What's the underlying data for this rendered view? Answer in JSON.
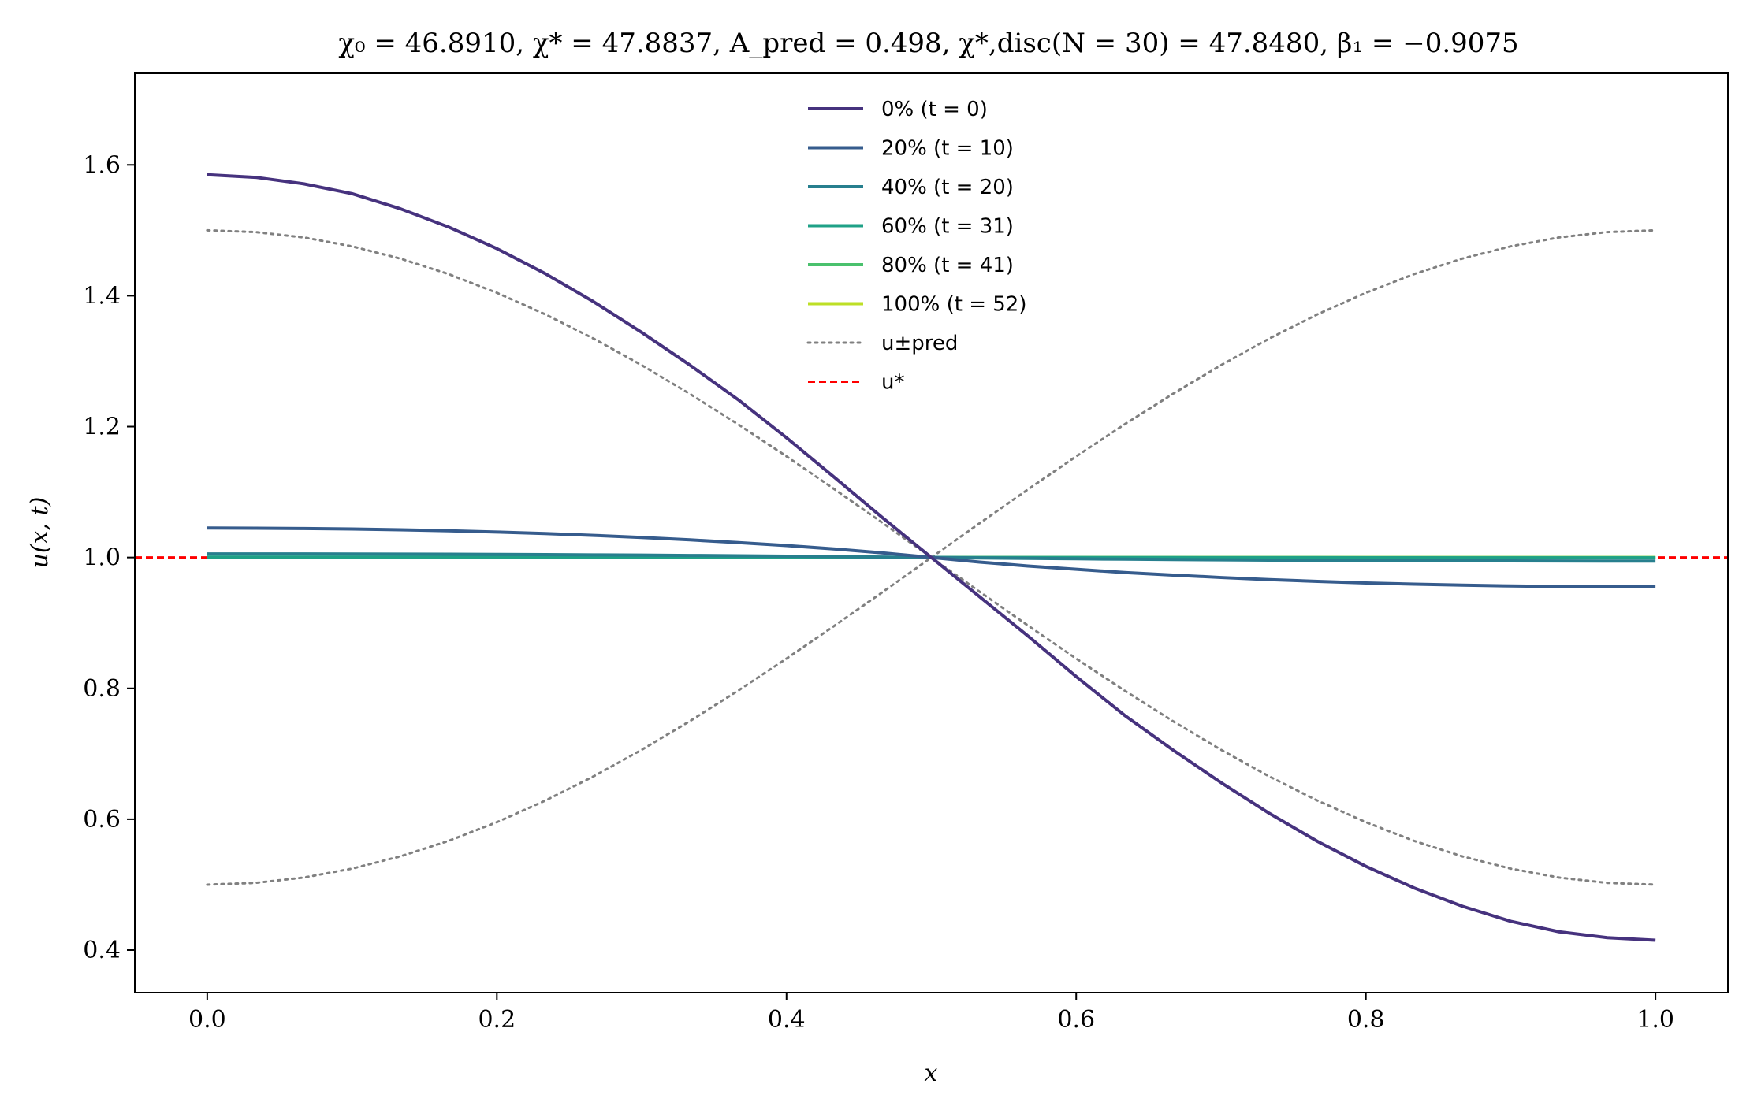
{
  "chart_data": {
    "type": "line",
    "title": "χ₀ = 46.8910,  χ* = 47.8837,  A_pred = 0.498,  χ*,disc(N = 30) = 47.8480,  β₁ = −0.9075",
    "xlabel": "x",
    "ylabel": "u(x, t)",
    "xlim": [
      -0.05,
      1.05
    ],
    "ylim": [
      0.335,
      1.74
    ],
    "xticks": [
      0.0,
      0.2,
      0.4,
      0.6,
      0.8,
      1.0
    ],
    "xtick_labels": [
      "0.0",
      "0.2",
      "0.4",
      "0.6",
      "0.8",
      "1.0"
    ],
    "yticks": [
      0.4,
      0.6,
      0.8,
      1.0,
      1.2,
      1.4,
      1.6
    ],
    "ytick_labels": [
      "0.4",
      "0.6",
      "0.8",
      "1.0",
      "1.2",
      "1.4",
      "1.6"
    ],
    "grid": false,
    "legend_position": "top-center",
    "x": [
      0.0,
      0.0333,
      0.0667,
      0.1,
      0.1333,
      0.1667,
      0.2,
      0.2333,
      0.2667,
      0.3,
      0.3333,
      0.3667,
      0.4,
      0.4333,
      0.4667,
      0.5,
      0.5333,
      0.5667,
      0.6,
      0.6333,
      0.6667,
      0.7,
      0.7333,
      0.7667,
      0.8,
      0.8333,
      0.8667,
      0.9,
      0.9333,
      0.9667,
      1.0
    ],
    "series": [
      {
        "name": "0% (t = 0)",
        "color": "#46327e",
        "style": "solid",
        "values": [
          1.585,
          1.581,
          1.571,
          1.556,
          1.533,
          1.505,
          1.472,
          1.434,
          1.391,
          1.344,
          1.294,
          1.241,
          1.183,
          1.122,
          1.06,
          1.0,
          0.94,
          0.88,
          0.818,
          0.759,
          0.706,
          0.656,
          0.609,
          0.566,
          0.528,
          0.495,
          0.467,
          0.444,
          0.428,
          0.419,
          0.415
        ]
      },
      {
        "name": "20% (t = 10)",
        "color": "#365c8d",
        "style": "solid",
        "values": [
          1.045,
          1.0448,
          1.0443,
          1.0435,
          1.0423,
          1.0408,
          1.0389,
          1.0366,
          1.0338,
          1.0306,
          1.0269,
          1.0228,
          1.0182,
          1.013,
          1.007,
          1.0,
          0.993,
          0.987,
          0.982,
          0.977,
          0.9731,
          0.9694,
          0.9662,
          0.9634,
          0.9611,
          0.9592,
          0.9577,
          0.9565,
          0.9557,
          0.9552,
          0.955
        ]
      },
      {
        "name": "40% (t = 20)",
        "color": "#277f8e",
        "style": "solid",
        "values": [
          1.0055,
          1.0055,
          1.0054,
          1.0053,
          1.0052,
          1.005,
          1.0047,
          1.0044,
          1.004,
          1.0036,
          1.0031,
          1.0026,
          1.002,
          1.0014,
          1.0007,
          1.0,
          0.9993,
          0.9986,
          0.998,
          0.9974,
          0.9969,
          0.9964,
          0.996,
          0.9956,
          0.9953,
          0.995,
          0.9948,
          0.9947,
          0.9946,
          0.9945,
          0.9945
        ]
      },
      {
        "name": "60% (t = 31)",
        "color": "#1fa187",
        "style": "solid",
        "values": [
          1.0006,
          1.0006,
          1.0006,
          1.0006,
          1.0006,
          1.0005,
          1.0005,
          1.0005,
          1.0004,
          1.0004,
          1.0003,
          1.0003,
          1.0002,
          1.0001,
          1.0001,
          1.0,
          0.9999,
          0.9999,
          0.9998,
          0.9997,
          0.9997,
          0.9996,
          0.9996,
          0.9995,
          0.9995,
          0.9995,
          0.9994,
          0.9994,
          0.9994,
          0.9994,
          0.9994
        ]
      },
      {
        "name": "80% (t = 41)",
        "color": "#4ac16d",
        "style": "solid",
        "values": [
          1.0001,
          1.0001,
          1.0001,
          1.0001,
          1.0001,
          1.0001,
          1.0001,
          1.0001,
          1.0,
          1.0,
          1.0,
          1.0,
          1.0,
          1.0,
          1.0,
          1.0,
          1.0,
          1.0,
          1.0,
          1.0,
          1.0,
          1.0,
          1.0,
          1.0,
          0.9999,
          0.9999,
          0.9999,
          0.9999,
          0.9999,
          0.9999,
          0.9999
        ]
      },
      {
        "name": "100% (t = 52)",
        "color": "#bddf26",
        "style": "solid",
        "values": [
          1.0,
          1.0,
          1.0,
          1.0,
          1.0,
          1.0,
          1.0,
          1.0,
          1.0,
          1.0,
          1.0,
          1.0,
          1.0,
          1.0,
          1.0,
          1.0,
          1.0,
          1.0,
          1.0,
          1.0,
          1.0,
          1.0,
          1.0,
          1.0,
          1.0,
          1.0,
          1.0,
          1.0,
          1.0,
          1.0,
          1.0
        ]
      },
      {
        "name": "u±pred",
        "color": "#808080",
        "style": "dotted",
        "values": [
          1.5,
          1.4973,
          1.4891,
          1.4755,
          1.4568,
          1.4331,
          1.4045,
          1.3717,
          1.3346,
          1.2939,
          1.25,
          1.2033,
          1.1545,
          1.104,
          1.0523,
          1.0,
          0.9477,
          0.896,
          0.8455,
          0.7967,
          0.75,
          0.7061,
          0.6654,
          0.6283,
          0.5955,
          0.5669,
          0.5432,
          0.5245,
          0.5109,
          0.5027,
          0.5
        ]
      },
      {
        "name": "",
        "color": "#808080",
        "style": "dotted",
        "values": [
          0.5,
          0.5027,
          0.5109,
          0.5245,
          0.5432,
          0.5669,
          0.5955,
          0.6283,
          0.6654,
          0.7061,
          0.75,
          0.7967,
          0.8455,
          0.896,
          0.9477,
          1.0,
          1.0523,
          1.104,
          1.1545,
          1.2033,
          1.25,
          1.2939,
          1.3346,
          1.3717,
          1.4045,
          1.4331,
          1.4568,
          1.4755,
          1.4891,
          1.4973,
          1.5
        ]
      },
      {
        "name": "u*",
        "color": "#ff0000",
        "style": "dashed",
        "constant": 1.0
      }
    ],
    "legend": [
      {
        "label": "0% (t = 0)",
        "color": "#46327e",
        "style": "solid"
      },
      {
        "label": "20% (t = 10)",
        "color": "#365c8d",
        "style": "solid"
      },
      {
        "label": "40% (t = 20)",
        "color": "#277f8e",
        "style": "solid"
      },
      {
        "label": "60% (t = 31)",
        "color": "#1fa187",
        "style": "solid"
      },
      {
        "label": "80% (t = 41)",
        "color": "#4ac16d",
        "style": "solid"
      },
      {
        "label": "100% (t = 52)",
        "color": "#bddf26",
        "style": "solid"
      },
      {
        "label": "u±pred",
        "color": "#808080",
        "style": "dotted"
      },
      {
        "label": "u*",
        "color": "#ff0000",
        "style": "dashed"
      }
    ]
  }
}
